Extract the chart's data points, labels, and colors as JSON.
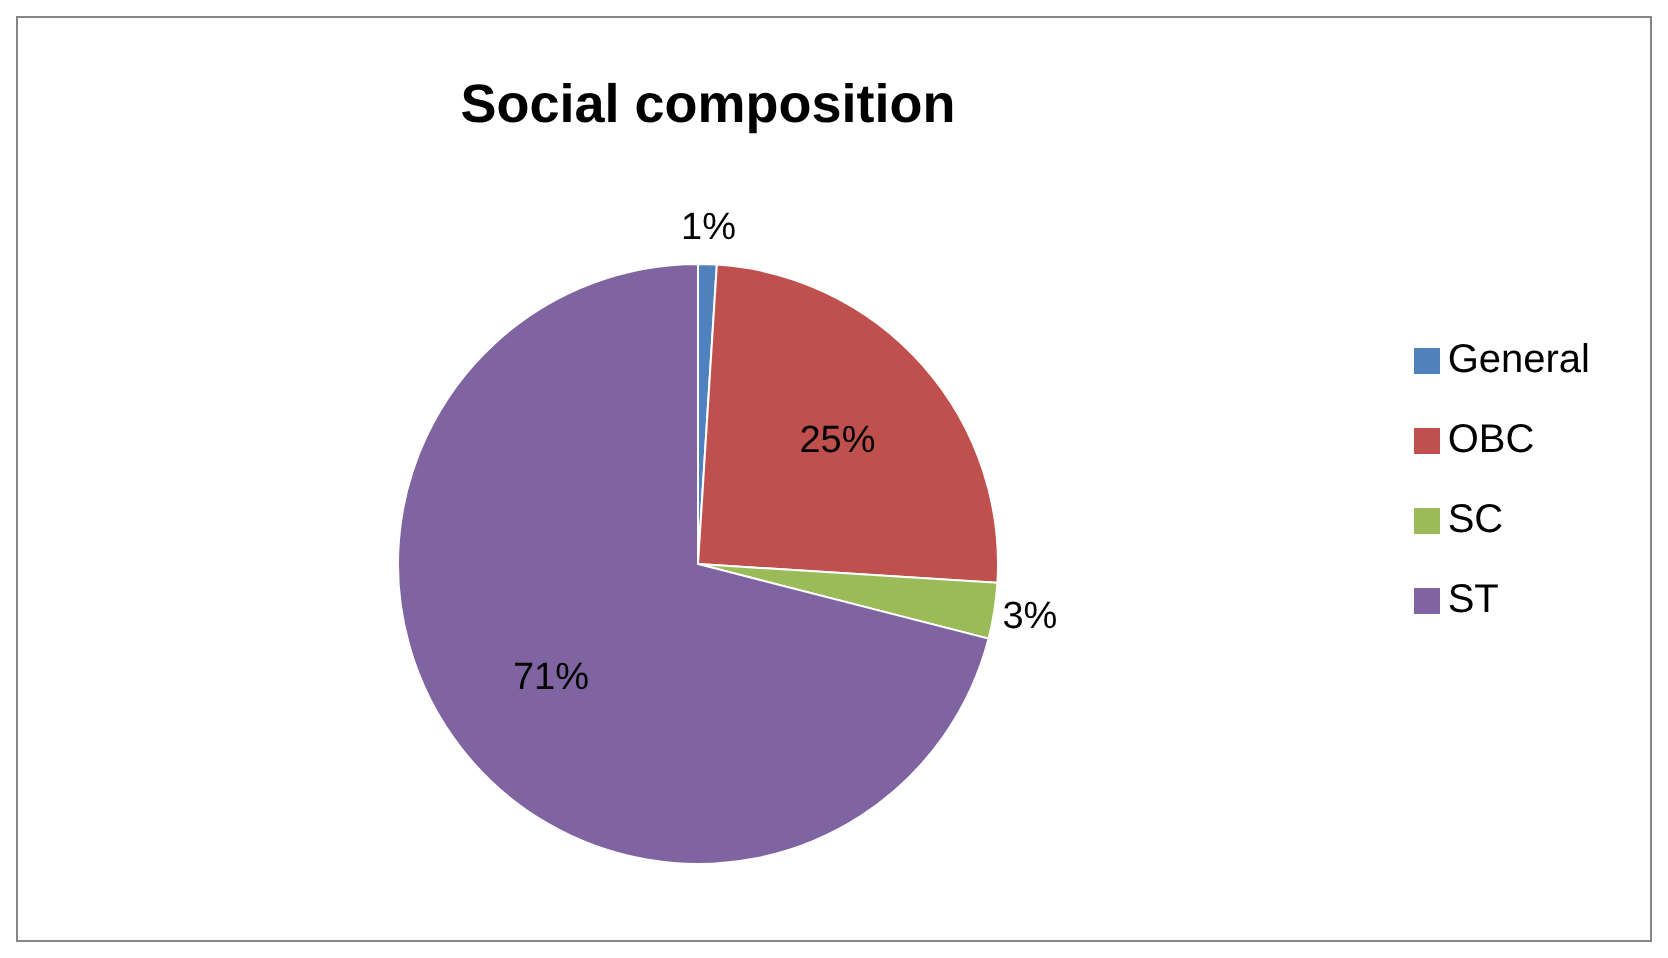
{
  "chart_data": {
    "type": "pie",
    "title": "Social composition",
    "categories": [
      "General",
      "OBC",
      "SC",
      "ST"
    ],
    "values": [
      1,
      25,
      3,
      71
    ],
    "colors": [
      "#4f81bd",
      "#c0504d",
      "#9bbb59",
      "#8064a2"
    ],
    "value_labels": [
      "1%",
      "25%",
      "3%",
      "71%"
    ],
    "legend": "right"
  }
}
